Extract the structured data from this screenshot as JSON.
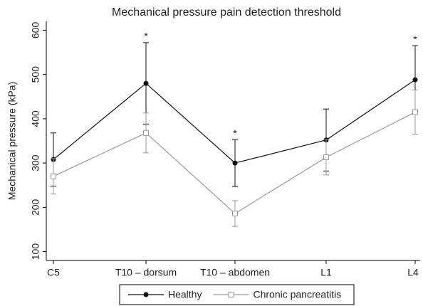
{
  "chart_data": {
    "type": "line",
    "title": "Mechanical pressure pain detection threshold",
    "ylabel": "Mechanical pressure (kPa)",
    "categories": [
      "C5",
      "T10 – dorsum",
      "T10 – abdomen",
      "L1",
      "L4"
    ],
    "series": [
      {
        "name": "Healthy",
        "color": "#111111",
        "marker": "circle",
        "values": [
          308,
          480,
          300,
          352,
          488
        ],
        "errors": [
          60,
          92,
          53,
          70,
          77
        ]
      },
      {
        "name": "Chronic pancreatitis",
        "color": "#999999",
        "marker": "square",
        "values": [
          270,
          368,
          186,
          313,
          415
        ],
        "errors": [
          40,
          45,
          29,
          40,
          50
        ]
      }
    ],
    "annotations": [
      {
        "text": "*",
        "category": "T10 – dorsum"
      },
      {
        "text": "*",
        "category": "T10 – abdomen"
      },
      {
        "text": "*",
        "category": "L4"
      }
    ],
    "ylim": [
      80,
      620
    ],
    "yticks": [
      100,
      200,
      300,
      400,
      500,
      600
    ],
    "grid": false,
    "legend": "bottom"
  }
}
